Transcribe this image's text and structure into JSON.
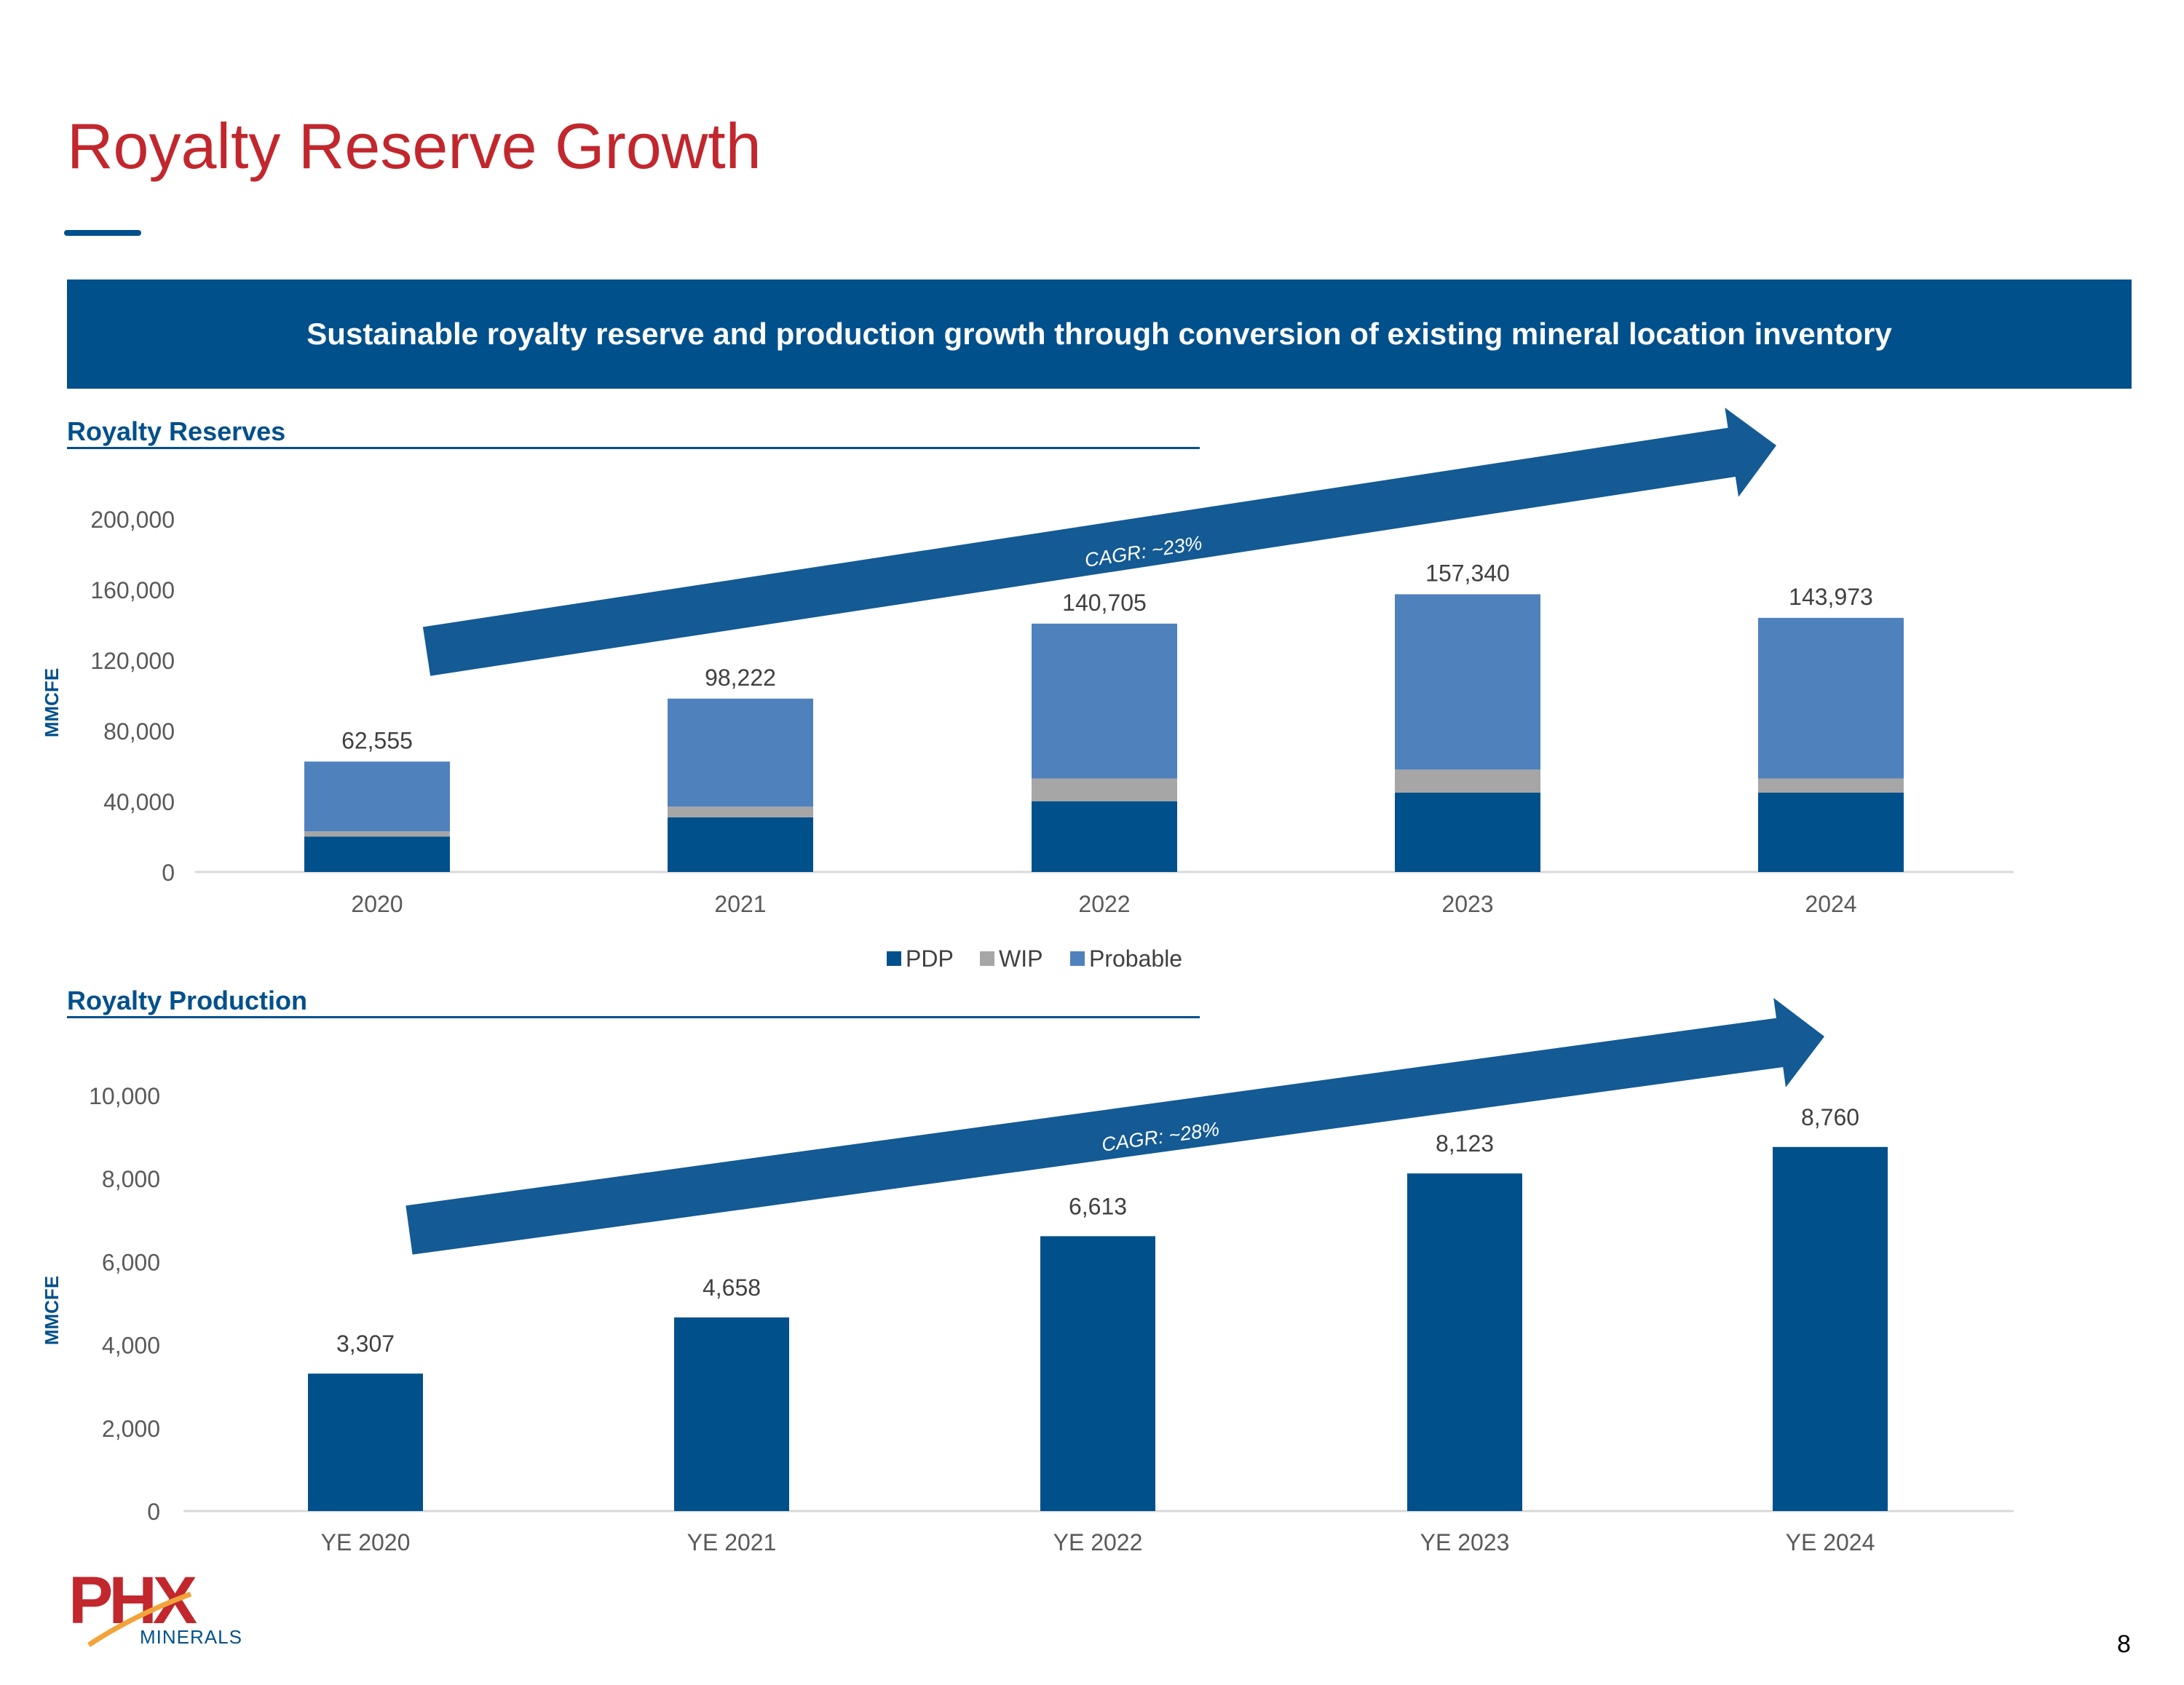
{
  "slide": {
    "title": "Royalty Reserve Growth",
    "banner": "Sustainable royalty reserve and production growth through conversion of existing mineral location inventory",
    "page_number": "8"
  },
  "reserves_section": {
    "heading": "Royalty Reserves"
  },
  "production_section": {
    "heading": "Royalty Production"
  },
  "logo": {
    "text": "PHX",
    "subtext": "MINERALS"
  },
  "colors": {
    "title_red": "#C1272D",
    "brand_blue": "#00508B",
    "pdp": "#00508B",
    "wip": "#A6A6A6",
    "probable": "#4F81BD",
    "arrow": "#145A94"
  },
  "chart_data": [
    {
      "type": "bar",
      "stacked": true,
      "title": "Royalty Reserves",
      "ylabel": "MMCFE",
      "xlabel": "",
      "categories": [
        "2020",
        "2021",
        "2022",
        "2023",
        "2024"
      ],
      "series": [
        {
          "name": "PDP",
          "values": [
            20000,
            31000,
            40000,
            45000,
            45000
          ]
        },
        {
          "name": "WIP",
          "values": [
            3000,
            6000,
            13000,
            13000,
            8000
          ]
        },
        {
          "name": "Probable",
          "values": [
            39555,
            61222,
            87705,
            99340,
            90973
          ]
        }
      ],
      "total_labels": [
        "62,555",
        "98,222",
        "140,705",
        "157,340",
        "143,973"
      ],
      "ylim": [
        0,
        200000
      ],
      "yticks": [
        0,
        40000,
        80000,
        120000,
        160000,
        200000
      ],
      "ytick_labels": [
        "0",
        "40,000",
        "80,000",
        "120,000",
        "160,000",
        "200,000"
      ],
      "legend": [
        "PDP",
        "WIP",
        "Probable"
      ],
      "legend_position": "bottom",
      "annotation": "CAGR: ~23%"
    },
    {
      "type": "bar",
      "title": "Royalty Production",
      "ylabel": "MMCFE",
      "xlabel": "",
      "categories": [
        "YE 2020",
        "YE 2021",
        "YE 2022",
        "YE 2023",
        "YE 2024"
      ],
      "values": [
        3307,
        4658,
        6613,
        8123,
        8760
      ],
      "value_labels": [
        "3,307",
        "4,658",
        "6,613",
        "8,123",
        "8,760"
      ],
      "ylim": [
        0,
        10000
      ],
      "yticks": [
        0,
        2000,
        4000,
        6000,
        8000,
        10000
      ],
      "ytick_labels": [
        "0",
        "2,000",
        "4,000",
        "6,000",
        "8,000",
        "10,000"
      ],
      "annotation": "CAGR: ~28%"
    }
  ]
}
